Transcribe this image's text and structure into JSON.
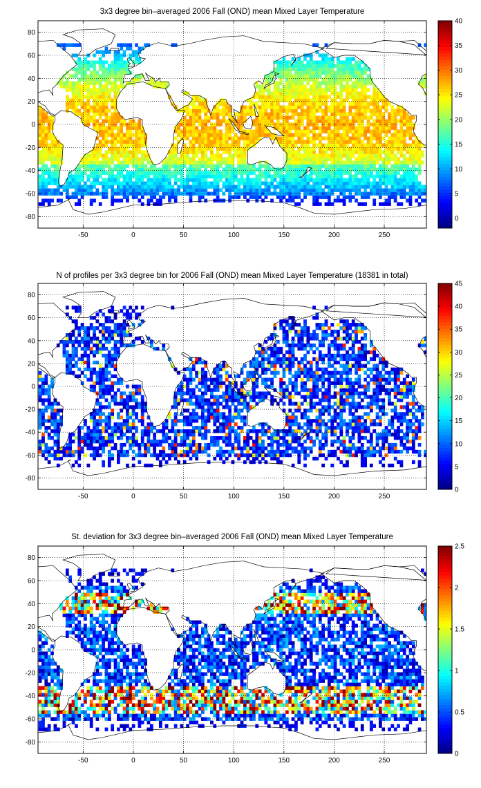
{
  "chart_data": [
    {
      "type": "heatmap",
      "title": "3x3 degree bin–averaged 2006 Fall (OND) mean Mixed Layer Temperature",
      "xlabel": "",
      "ylabel": "",
      "xlim": [
        -95,
        292
      ],
      "ylim": [
        -90,
        90
      ],
      "xticks": [
        -50,
        0,
        50,
        100,
        150,
        200,
        250
      ],
      "yticks": [
        -80,
        -60,
        -40,
        -20,
        0,
        20,
        40,
        60,
        80
      ],
      "grid": true,
      "colormap": "jet",
      "colorbar": {
        "min": -2,
        "max": 40,
        "ticks": [
          0,
          5,
          10,
          15,
          20,
          25,
          30,
          35,
          40
        ]
      },
      "bin_size_deg": 3,
      "description_values": "warm (25-30) tropical bins, decreasing to ~0 at 60S and in the far north"
    },
    {
      "type": "heatmap",
      "title": "N of profiles per 3x3 degree bin for 2006 Fall (OND) mean Mixed Layer Temperature  (18381 in total)",
      "xlabel": "",
      "ylabel": "",
      "xlim": [
        -95,
        292
      ],
      "ylim": [
        -90,
        90
      ],
      "xticks": [
        -50,
        0,
        50,
        100,
        150,
        200,
        250
      ],
      "yticks": [
        -80,
        -60,
        -40,
        -20,
        0,
        20,
        40,
        60,
        80
      ],
      "grid": true,
      "colormap": "jet",
      "colorbar": {
        "min": 0,
        "max": 45,
        "ticks": [
          0,
          5,
          10,
          15,
          20,
          25,
          30,
          35,
          40,
          45
        ]
      },
      "bin_size_deg": 3,
      "total_profiles": 18381
    },
    {
      "type": "heatmap",
      "title": "St. deviation for 3x3 degree bin–averaged 2006 Fall (OND) mean Mixed Layer Temperature",
      "xlabel": "",
      "ylabel": "",
      "xlim": [
        -95,
        292
      ],
      "ylim": [
        -90,
        90
      ],
      "xticks": [
        -50,
        0,
        50,
        100,
        150,
        200,
        250
      ],
      "yticks": [
        -80,
        -60,
        -40,
        -20,
        0,
        20,
        40,
        60,
        80
      ],
      "grid": true,
      "colormap": "jet",
      "colorbar": {
        "min": 0,
        "max": 2.5,
        "ticks": [
          0,
          0.5,
          1,
          1.5,
          2,
          2.5
        ]
      },
      "bin_size_deg": 3
    }
  ],
  "colors": {
    "land": "#ffffff",
    "coastline": "#000000",
    "grid": "#000000",
    "background": "#ffffff"
  }
}
